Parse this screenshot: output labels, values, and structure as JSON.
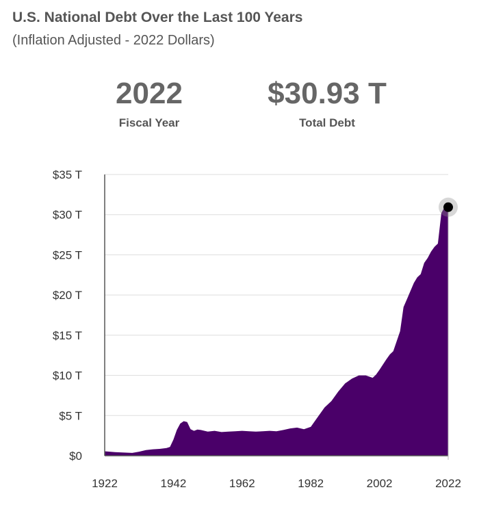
{
  "header": {
    "title": "U.S. National Debt Over the Last 100 Years",
    "subtitle": "(Inflation Adjusted - 2022 Dollars)"
  },
  "stats": {
    "year_value": "2022",
    "year_label": "Fiscal Year",
    "debt_value": "$30.93 T",
    "debt_label": "Total Debt"
  },
  "chart_data": {
    "type": "area",
    "title": "U.S. National Debt Over the Last 100 Years",
    "subtitle": "(Inflation Adjusted - 2022 Dollars)",
    "xlabel": "",
    "ylabel": "",
    "xlim": [
      1922,
      2022
    ],
    "ylim": [
      0,
      35
    ],
    "x_ticks": [
      1922,
      1942,
      1962,
      1982,
      2002,
      2022
    ],
    "y_ticks": [
      0,
      5,
      10,
      15,
      20,
      25,
      30,
      35
    ],
    "y_tick_labels": [
      "$0",
      "$5 T",
      "$10 T",
      "$15 T",
      "$20 T",
      "$25 T",
      "$30 T",
      "$35 T"
    ],
    "unit": "trillion 2022 dollars",
    "fill_color": "#4a0069",
    "highlight": {
      "x": 2022,
      "y": 30.93
    },
    "series": [
      {
        "x": [
          1922,
          1925,
          1930,
          1932,
          1934,
          1936,
          1938,
          1940,
          1941,
          1942,
          1943,
          1944,
          1945,
          1946,
          1947,
          1948,
          1949,
          1950,
          1952,
          1954,
          1956,
          1958,
          1960,
          1962,
          1964,
          1966,
          1968,
          1970,
          1972,
          1974,
          1976,
          1978,
          1980,
          1982,
          1984,
          1986,
          1988,
          1990,
          1992,
          1994,
          1996,
          1998,
          2000,
          2001,
          2002,
          2004,
          2005,
          2006,
          2008,
          2009,
          2010,
          2011,
          2012,
          2013,
          2014,
          2015,
          2016,
          2017,
          2018,
          2019,
          2020,
          2021,
          2022
        ],
        "values": [
          0.55,
          0.45,
          0.35,
          0.5,
          0.7,
          0.8,
          0.85,
          0.95,
          1.1,
          2.0,
          3.2,
          4.0,
          4.3,
          4.2,
          3.3,
          3.1,
          3.25,
          3.2,
          3.0,
          3.1,
          2.95,
          3.0,
          3.05,
          3.1,
          3.05,
          3.0,
          3.05,
          3.1,
          3.05,
          3.2,
          3.4,
          3.5,
          3.3,
          3.6,
          4.8,
          6.0,
          6.8,
          8.0,
          9.0,
          9.6,
          10.0,
          10.0,
          9.7,
          10.1,
          10.7,
          12.0,
          12.6,
          13.0,
          15.5,
          18.5,
          19.5,
          20.5,
          21.5,
          22.2,
          22.6,
          24.0,
          24.6,
          25.4,
          26.0,
          26.4,
          30.2,
          31.0,
          30.93
        ]
      }
    ]
  }
}
